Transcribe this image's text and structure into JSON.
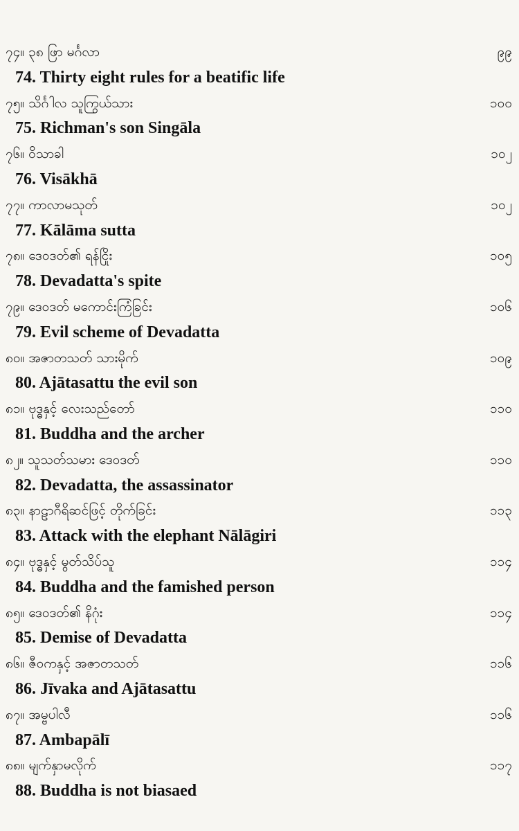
{
  "entries": [
    {
      "burmese": "၇၄။ ၃၈ ဖြာ မင်္ဂလာ",
      "page": "၉၉",
      "english": "74. Thirty eight rules for a beatific life"
    },
    {
      "burmese": "၇၅။ သိင်္ဂါလ သူကြွယ်သား",
      "page": "၁၀၀",
      "english": "75. Richman's son Singāla"
    },
    {
      "burmese": "၇၆။ ဝိသာခါ",
      "page": "၁၀၂",
      "english": "76. Visākhā"
    },
    {
      "burmese": "၇၇။ ကာလာမသုတ်",
      "page": "၁၀၂",
      "english": "77. Kālāma sutta"
    },
    {
      "burmese": "၇၈။ ဒေဝဒတ်၏ ရန်ငြိုး",
      "page": "၁၀၅",
      "english": "78. Devadatta's spite"
    },
    {
      "burmese": "၇၉။ ဒေဝဒတ် မကောင်းကြံခြင်း",
      "page": "၁၀၆",
      "english": "79. Evil scheme of Devadatta"
    },
    {
      "burmese": "၈၀။ အဇာတသတ် သားမိုက်",
      "page": "၁၀၉",
      "english": "80. Ajātasattu the evil son"
    },
    {
      "burmese": "၈၁။ ဗုဒ္ဓနှင့် လေးသည်တော်",
      "page": "၁၁၀",
      "english": "81. Buddha and the archer"
    },
    {
      "burmese": "၈၂။ သူသတ်သမား ဒေဝဒတ်",
      "page": "၁၁၀",
      "english": "82. Devadatta, the assassinator"
    },
    {
      "burmese": "၈၃။ နာဠာဂီရိဆင်ဖြင့် တိုက်ခြင်း",
      "page": "၁၁၃",
      "english": "83. Attack with the elephant Nālāgiri"
    },
    {
      "burmese": "၈၄။ ဗုဒ္ဓနှင့် မွတ်သိပ်သူ",
      "page": "၁၁၄",
      "english": "84. Buddha and the famished person"
    },
    {
      "burmese": "၈၅။ ဒေဝဒတ်၏ နိဂုံး",
      "page": "၁၁၄",
      "english": "85. Demise of Devadatta"
    },
    {
      "burmese": "၈၆။ ဇီဝကနှင့် အဇာတသတ်",
      "page": "၁၁၆",
      "english": "86. Jīvaka and Ajātasattu"
    },
    {
      "burmese": "၈၇။ အမ္ဗပါလီ",
      "page": "၁၁၆",
      "english": "87. Ambapālī"
    },
    {
      "burmese": "၈၈။ မျက်နှာမလိုက်",
      "page": "၁၁၇",
      "english": "88. Buddha is not biasaed"
    }
  ]
}
